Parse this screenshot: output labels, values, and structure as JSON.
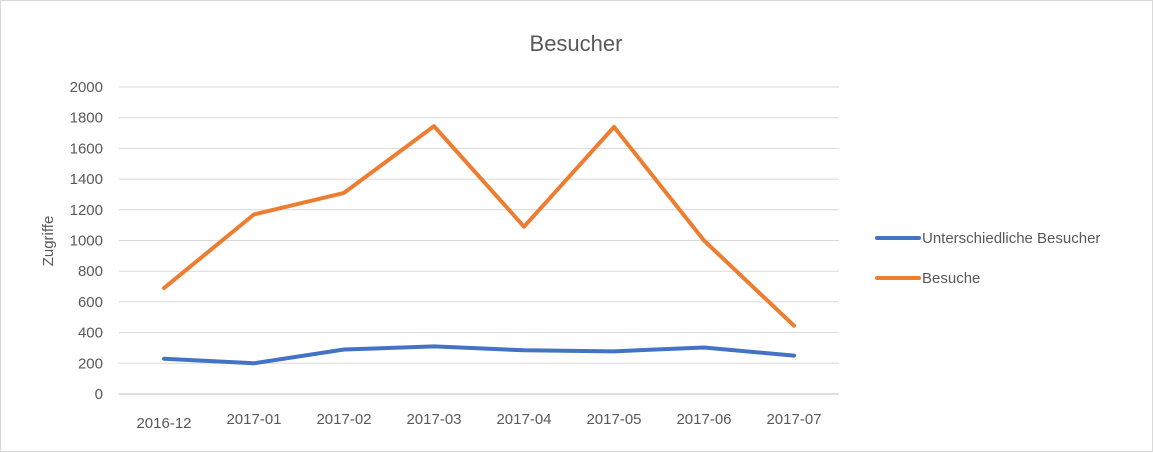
{
  "chart_data": {
    "type": "line",
    "title": "Besucher",
    "xlabel": "",
    "ylabel": "Zugriffe",
    "categories": [
      "2016-12",
      "2017-01",
      "2017-02",
      "2017-03",
      "2017-04",
      "2017-05",
      "2017-06",
      "2017-07"
    ],
    "ylim": [
      0,
      2000
    ],
    "yticks": [
      "0",
      "200",
      "400",
      "600",
      "800",
      "1000",
      "1200",
      "1400",
      "1600",
      "1800",
      "2000"
    ],
    "grid": true,
    "legend_position": "right",
    "series": [
      {
        "name": "Unterschiedliche Besucher",
        "color": "#4472c4",
        "values": [
          230,
          200,
          290,
          310,
          285,
          278,
          303,
          250
        ]
      },
      {
        "name": "Besuche",
        "color": "#ed7d31",
        "values": [
          690,
          1170,
          1310,
          1745,
          1090,
          1740,
          1000,
          445
        ]
      }
    ]
  }
}
